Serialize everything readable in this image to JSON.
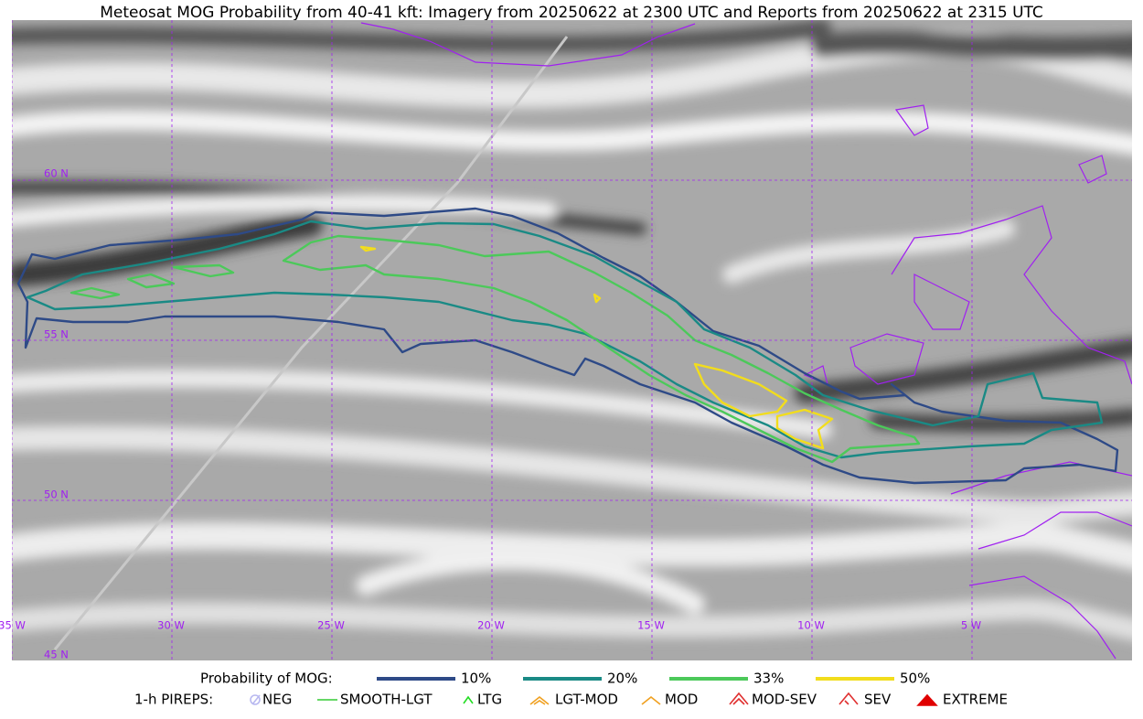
{
  "title": "Meteosat MOG Probability from 40-41 kft: Imagery from 20250622 at 2300 UTC and Reports from 20250622 at 2315 UTC",
  "map": {
    "latitude_labels": [
      "60 N",
      "55 N",
      "50 N",
      "45 N"
    ],
    "longitude_labels": [
      "35 W",
      "30 W",
      "25 W",
      "20 W",
      "15 W",
      "10 W",
      "5 W"
    ]
  },
  "legend": {
    "probability": {
      "label": "Probability of MOG:",
      "items": [
        {
          "label": "10%",
          "color": "#2e4a87"
        },
        {
          "label": "20%",
          "color": "#1a8a85"
        },
        {
          "label": "33%",
          "color": "#4cc95a"
        },
        {
          "label": "50%",
          "color": "#f2dd1c"
        }
      ]
    },
    "pireps": {
      "label": "1-h PIREPS:",
      "items": [
        {
          "label": "NEG",
          "color": "#b8b8f0"
        },
        {
          "label": "SMOOTH-LGT",
          "color": "#33cc33"
        },
        {
          "label": "LTG",
          "color": "#22dd22"
        },
        {
          "label": "LGT-MOD",
          "color": "#f0a020"
        },
        {
          "label": "MOD",
          "color": "#f0a020"
        },
        {
          "label": "MOD-SEV",
          "color": "#e03030"
        },
        {
          "label": "SEV",
          "color": "#e03030"
        },
        {
          "label": "EXTREME",
          "color": "#e00000"
        }
      ]
    }
  }
}
